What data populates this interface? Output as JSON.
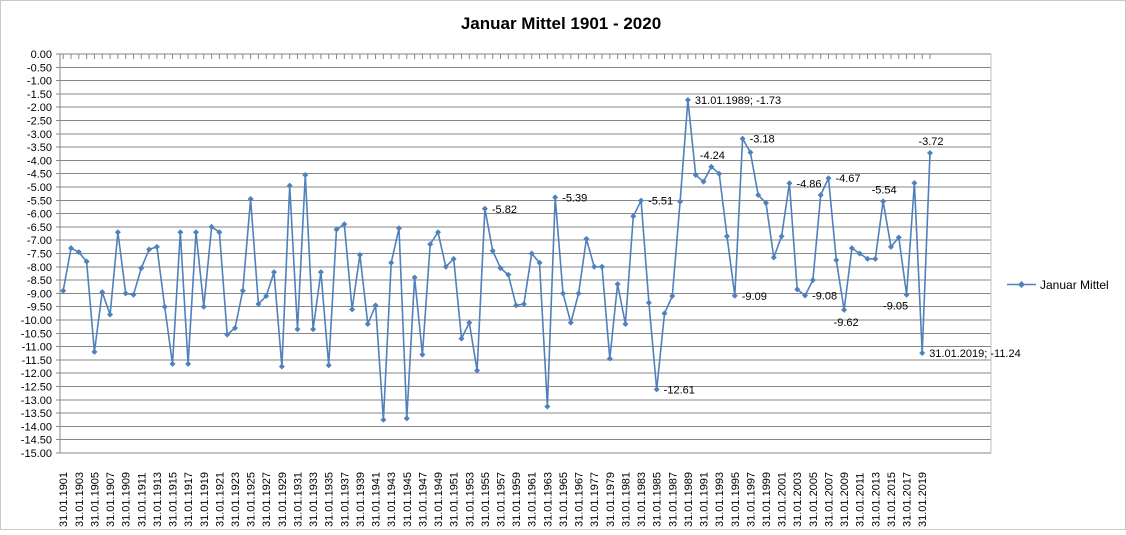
{
  "colors": {
    "series": "#4F81BD",
    "gridline": "#878787",
    "axis": "#878787",
    "text": "#000000",
    "frame_border": "#c9c9c9",
    "plot_right_border": "#c0c0c0"
  },
  "chart_data": {
    "type": "line",
    "title": "Januar Mittel 1901 - 2020",
    "legend_position": "right",
    "grid": "horizontal-only",
    "ylim": [
      -15,
      0
    ],
    "y_tick_step": 0.5,
    "y_tick_labels": [
      "0.00",
      "-0.50",
      "-1.00",
      "-1.50",
      "-2.00",
      "-2.50",
      "-3.00",
      "-3.50",
      "-4.00",
      "-4.50",
      "-5.00",
      "-5.50",
      "-6.00",
      "-6.50",
      "-7.00",
      "-7.50",
      "-8.00",
      "-8.50",
      "-9.00",
      "-9.50",
      "-10.00",
      "-10.50",
      "-11.00",
      "-11.50",
      "-12.00",
      "-12.50",
      "-13.00",
      "-13.50",
      "-14.00",
      "-14.50",
      "-15.00"
    ],
    "x_tick_interval": 2,
    "categories": [
      "31.01.1901",
      "31.01.1902",
      "31.01.1903",
      "31.01.1904",
      "31.01.1905",
      "31.01.1906",
      "31.01.1907",
      "31.01.1908",
      "31.01.1909",
      "31.01.1910",
      "31.01.1911",
      "31.01.1912",
      "31.01.1913",
      "31.01.1914",
      "31.01.1915",
      "31.01.1916",
      "31.01.1917",
      "31.01.1918",
      "31.01.1919",
      "31.01.1920",
      "31.01.1921",
      "31.01.1922",
      "31.01.1923",
      "31.01.1924",
      "31.01.1925",
      "31.01.1926",
      "31.01.1927",
      "31.01.1928",
      "31.01.1929",
      "31.01.1930",
      "31.01.1931",
      "31.01.1932",
      "31.01.1933",
      "31.01.1934",
      "31.01.1935",
      "31.01.1936",
      "31.01.1937",
      "31.01.1938",
      "31.01.1939",
      "31.01.1940",
      "31.01.1941",
      "31.01.1942",
      "31.01.1943",
      "31.01.1944",
      "31.01.1945",
      "31.01.1946",
      "31.01.1947",
      "31.01.1948",
      "31.01.1949",
      "31.01.1950",
      "31.01.1951",
      "31.01.1952",
      "31.01.1953",
      "31.01.1954",
      "31.01.1955",
      "31.01.1956",
      "31.01.1957",
      "31.01.1958",
      "31.01.1959",
      "31.01.1960",
      "31.01.1961",
      "31.01.1962",
      "31.01.1963",
      "31.01.1964",
      "31.01.1965",
      "31.01.1966",
      "31.01.1967",
      "31.01.1968",
      "31.01.1977",
      "31.01.1978",
      "31.01.1979",
      "31.01.1980",
      "31.01.1981",
      "31.01.1982",
      "31.01.1983",
      "31.01.1984",
      "31.01.1985",
      "31.01.1986",
      "31.01.1987",
      "31.01.1988",
      "31.01.1989",
      "31.01.1990",
      "31.01.1991",
      "31.01.1992",
      "31.01.1993",
      "31.01.1994",
      "31.01.1995",
      "31.01.1996",
      "31.01.1997",
      "31.01.1998",
      "31.01.1999",
      "31.01.2000",
      "31.01.2001",
      "31.01.2002",
      "31.01.2003",
      "31.01.2004",
      "31.01.2005",
      "31.01.2006",
      "31.01.2007",
      "31.01.2008",
      "31.01.2009",
      "31.01.2010",
      "31.01.2011",
      "31.01.2012",
      "31.01.2013",
      "31.01.2014",
      "31.01.2015",
      "31.01.2016",
      "31.01.2017",
      "31.01.2018",
      "31.01.2019",
      "31.01.2020"
    ],
    "series": [
      {
        "name": "Januar Mittel",
        "color": "#4F81BD",
        "marker": "diamond",
        "values": [
          -8.9,
          -7.3,
          -7.45,
          -7.8,
          -11.2,
          -8.95,
          -9.8,
          -6.7,
          -9.0,
          -9.05,
          -8.05,
          -7.35,
          -7.25,
          -9.5,
          -11.65,
          -6.7,
          -11.65,
          -6.7,
          -9.5,
          -6.5,
          -6.7,
          -10.55,
          -10.3,
          -8.9,
          -5.45,
          -9.4,
          -9.1,
          -8.2,
          -11.75,
          -4.95,
          -10.35,
          -4.55,
          -10.35,
          -8.2,
          -11.7,
          -6.6,
          -6.4,
          -9.6,
          -7.55,
          -10.15,
          -9.45,
          -13.75,
          -7.85,
          -6.55,
          -13.7,
          -8.4,
          -11.3,
          -7.15,
          -6.7,
          -8.0,
          -7.7,
          -10.7,
          -10.1,
          -11.9,
          -5.82,
          -7.4,
          -8.05,
          -8.3,
          -9.45,
          -9.4,
          -7.5,
          -7.85,
          -13.25,
          -5.39,
          -9.0,
          -10.1,
          -9.0,
          -6.95,
          -8.0,
          -8.0,
          -11.45,
          -8.65,
          -10.15,
          -6.1,
          -5.51,
          -9.35,
          -12.61,
          -9.75,
          -9.1,
          -5.55,
          -1.73,
          -4.55,
          -4.8,
          -4.24,
          -4.5,
          -6.85,
          -9.09,
          -3.18,
          -3.7,
          -5.3,
          -5.6,
          -7.65,
          -6.85,
          -4.86,
          -8.85,
          -9.08,
          -8.5,
          -5.3,
          -4.67,
          -7.75,
          -9.62,
          -7.3,
          -7.5,
          -7.7,
          -7.7,
          -5.54,
          -7.25,
          -6.9,
          -9.05,
          -4.85,
          -11.24,
          -3.72
        ]
      }
    ],
    "data_labels": [
      {
        "category": "31.01.1955",
        "text": "-5.82",
        "pos": "right"
      },
      {
        "category": "31.01.1964",
        "text": "-5.39",
        "pos": "right"
      },
      {
        "category": "31.01.1983",
        "text": "-5.51",
        "pos": "right"
      },
      {
        "category": "31.01.1985",
        "text": "-12.61",
        "pos": "right"
      },
      {
        "category": "31.01.1989",
        "text": "31.01.1989; -1.73",
        "pos": "right"
      },
      {
        "category": "31.01.1992",
        "text": "-4.24",
        "pos": "above"
      },
      {
        "category": "31.01.1995",
        "text": "-9.09",
        "pos": "right"
      },
      {
        "category": "31.01.1996",
        "text": "-3.18",
        "pos": "right"
      },
      {
        "category": "31.01.2002",
        "text": "-4.86",
        "pos": "right"
      },
      {
        "category": "31.01.2004",
        "text": "-9.08",
        "pos": "right"
      },
      {
        "category": "31.01.2007",
        "text": "-4.67",
        "pos": "right"
      },
      {
        "category": "31.01.2009",
        "text": "-9.62",
        "pos": "below"
      },
      {
        "category": "31.01.2014",
        "text": "-5.54",
        "pos": "above"
      },
      {
        "category": "31.01.2017",
        "text": "-9.05",
        "pos": "below-left"
      },
      {
        "category": "31.01.2019",
        "text": "31.01.2019; -11.24",
        "pos": "right"
      },
      {
        "category": "31.01.2020",
        "text": "-3.72",
        "pos": "above"
      }
    ]
  }
}
